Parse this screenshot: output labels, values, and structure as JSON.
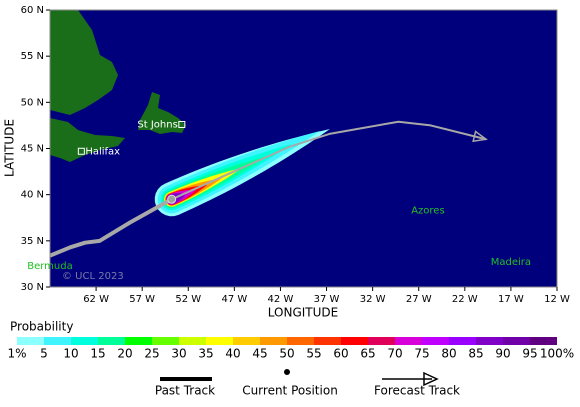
{
  "chart_data": {
    "type": "map",
    "xlabel": "LONGITUDE",
    "ylabel": "LATITUDE",
    "xlim": [
      -67,
      -12
    ],
    "ylim": [
      30,
      60
    ],
    "xticks": [
      {
        "value": -62,
        "label": "62 W"
      },
      {
        "value": -57,
        "label": "57 W"
      },
      {
        "value": -52,
        "label": "52 W"
      },
      {
        "value": -47,
        "label": "47 W"
      },
      {
        "value": -42,
        "label": "42 W"
      },
      {
        "value": -37,
        "label": "37 W"
      },
      {
        "value": -32,
        "label": "32 W"
      },
      {
        "value": -27,
        "label": "27 W"
      },
      {
        "value": -22,
        "label": "22 W"
      },
      {
        "value": -17,
        "label": "17 W"
      },
      {
        "value": -12,
        "label": "12 W"
      }
    ],
    "yticks": [
      {
        "value": 30,
        "label": "30 N"
      },
      {
        "value": 35,
        "label": "35 N"
      },
      {
        "value": 40,
        "label": "40 N"
      },
      {
        "value": 45,
        "label": "45 N"
      },
      {
        "value": 50,
        "label": "50 N"
      },
      {
        "value": 55,
        "label": "55 N"
      },
      {
        "value": 60,
        "label": "60 N"
      }
    ],
    "places": [
      {
        "name": "St Johns",
        "x": -52.7,
        "y": 47.6
      },
      {
        "name": "Halifax",
        "x": -63.6,
        "y": 44.7
      },
      {
        "name": "Bermuda",
        "x": -67,
        "y": 32.3
      },
      {
        "name": "Azores",
        "x": -26,
        "y": 38.3
      },
      {
        "name": "Madeira",
        "x": -17,
        "y": 32.7
      }
    ],
    "copyright": "© UCL 2023",
    "past_track": {
      "name": "Past Track",
      "x": [
        -67,
        -64.8,
        -63.2,
        -61.6,
        -58.3,
        -54.7,
        -53.8
      ],
      "y": [
        33.4,
        34.3,
        34.8,
        35.0,
        37.0,
        39.0,
        39.5
      ]
    },
    "current_position": {
      "name": "Current Position",
      "x": -53.8,
      "y": 39.5
    },
    "forecast_track": {
      "name": "Forecast Track",
      "x": [
        -53.8,
        -46.4,
        -41.0,
        -36.6,
        -29.2,
        -25.7,
        -19.7
      ],
      "y": [
        39.5,
        42.8,
        45.2,
        46.6,
        47.9,
        47.5,
        46.0
      ]
    },
    "probability_title": "Probability",
    "probability_ticks": [
      {
        "value": 1,
        "label": "1%"
      },
      5,
      10,
      15,
      20,
      25,
      30,
      35,
      40,
      45,
      50,
      55,
      60,
      65,
      70,
      75,
      80,
      85,
      90,
      95,
      {
        "value": 100,
        "label": "100%"
      }
    ],
    "probability_colors": [
      "#8cffff",
      "#40f4ff",
      "#00ffdd",
      "#00ff99",
      "#00ff00",
      "#66ff00",
      "#ccff00",
      "#ffff00",
      "#ffcc00",
      "#ff9900",
      "#ff6600",
      "#ff3300",
      "#ff0000",
      "#e0005a",
      "#d800d8",
      "#c000ff",
      "#9900ff",
      "#8000c8",
      "#7000a8",
      "#600080"
    ]
  }
}
